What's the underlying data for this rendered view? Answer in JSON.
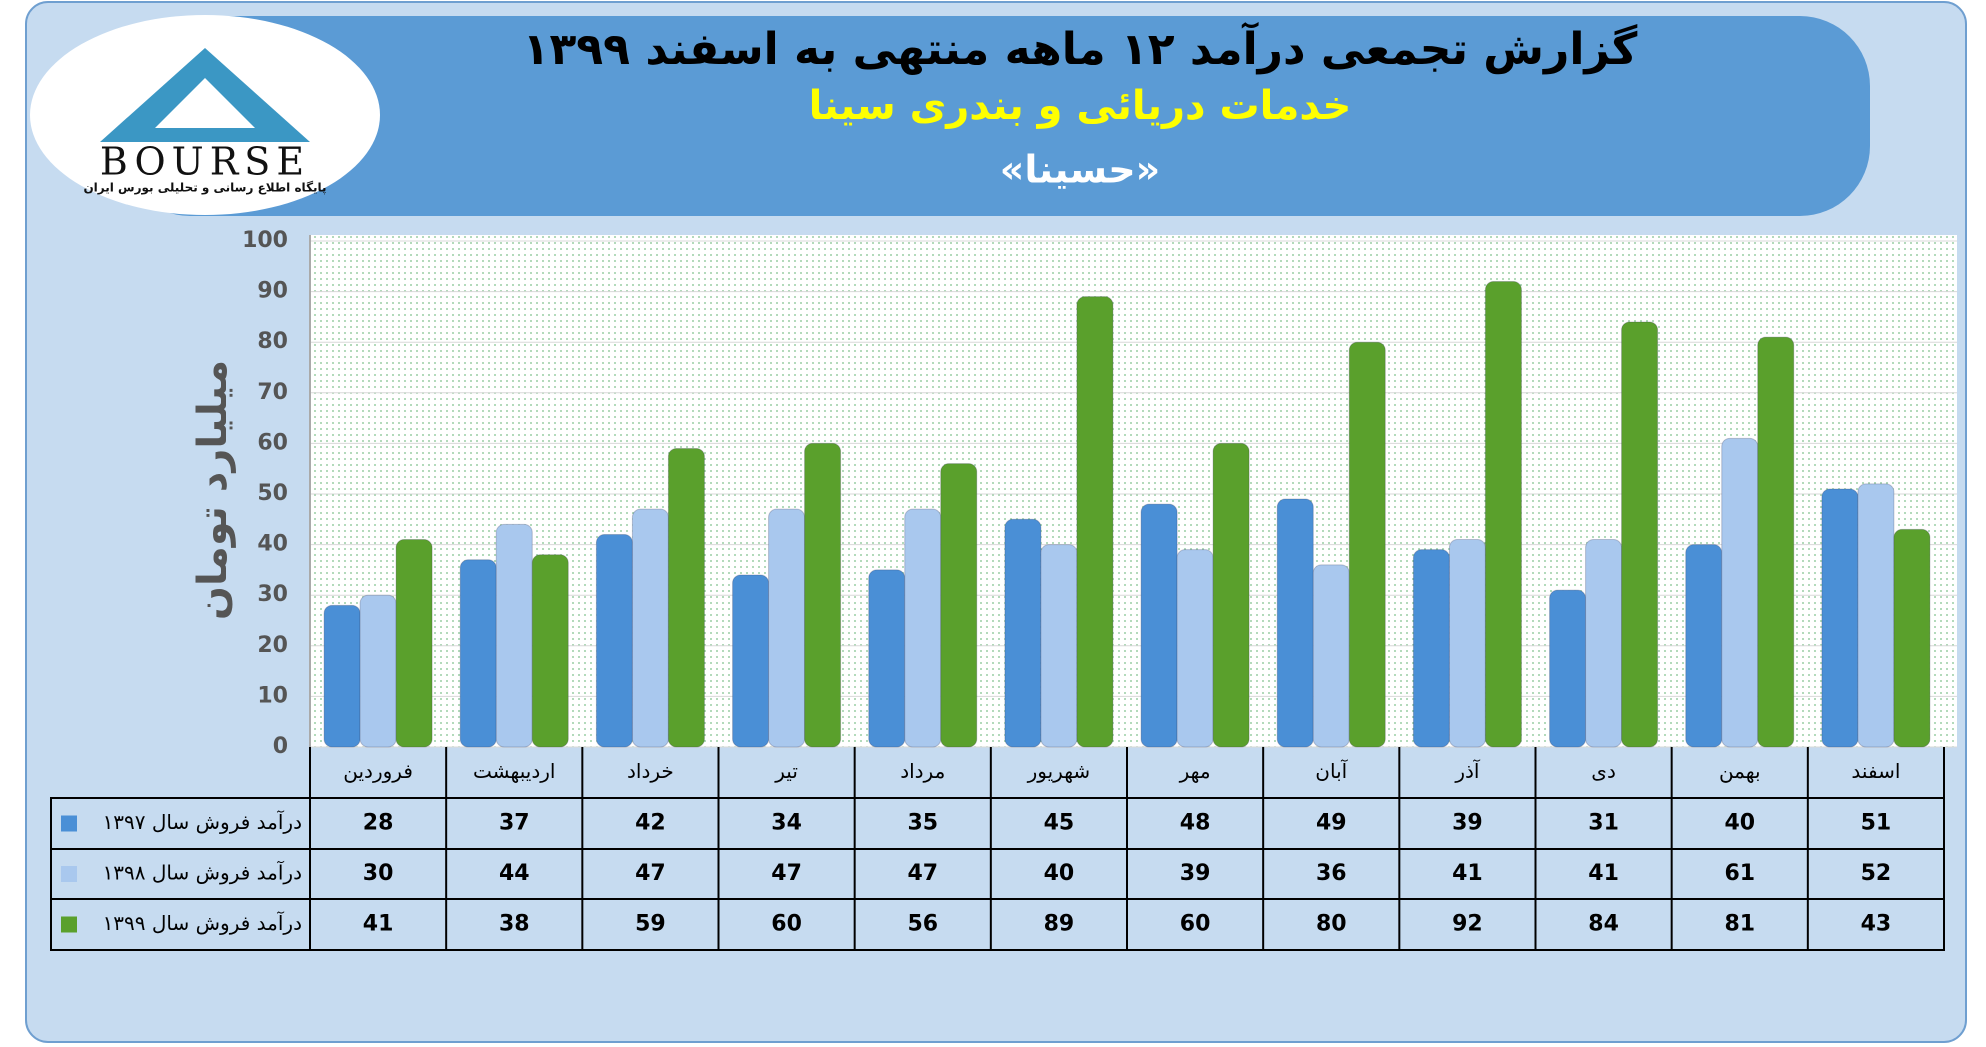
{
  "logo": {
    "name": "BOURSE",
    "tagline": "پایگاه اطلاع رسانی و تحلیلی بورس ایران"
  },
  "chart_data": {
    "type": "bar",
    "title": "گزارش تجمعی درآمد ۱۲ ماهه منتهی به اسفند ۱۳۹۹",
    "subtitle": "خدمات دریائی و بندری سینا",
    "symbol": "«حسینا»",
    "y_label": "میلیارد تومان",
    "categories": [
      "فروردین",
      "اردیبهشت",
      "خرداد",
      "تیر",
      "مرداد",
      "شهریور",
      "مهر",
      "آبان",
      "آذر",
      "دی",
      "بهمن",
      "اسفند"
    ],
    "series": [
      {
        "name": "درآمد فروش سال ۱۳۹۷",
        "color": "#4a8fd6",
        "values": [
          28,
          37,
          42,
          34,
          35,
          45,
          48,
          49,
          39,
          31,
          40,
          51
        ]
      },
      {
        "name": "درآمد فروش سال ۱۳۹۸",
        "color": "#a9c8ee",
        "values": [
          30,
          44,
          47,
          47,
          47,
          40,
          39,
          36,
          41,
          41,
          61,
          52
        ]
      },
      {
        "name": "درآمد فروش سال ۱۳۹۹",
        "color": "#5aa02c",
        "values": [
          41,
          38,
          59,
          60,
          56,
          89,
          60,
          80,
          92,
          84,
          81,
          43
        ]
      }
    ],
    "ylim": [
      0,
      100
    ],
    "yticks": [
      0,
      10,
      20,
      30,
      40,
      50,
      60,
      70,
      80,
      90,
      100
    ],
    "grid": true
  }
}
